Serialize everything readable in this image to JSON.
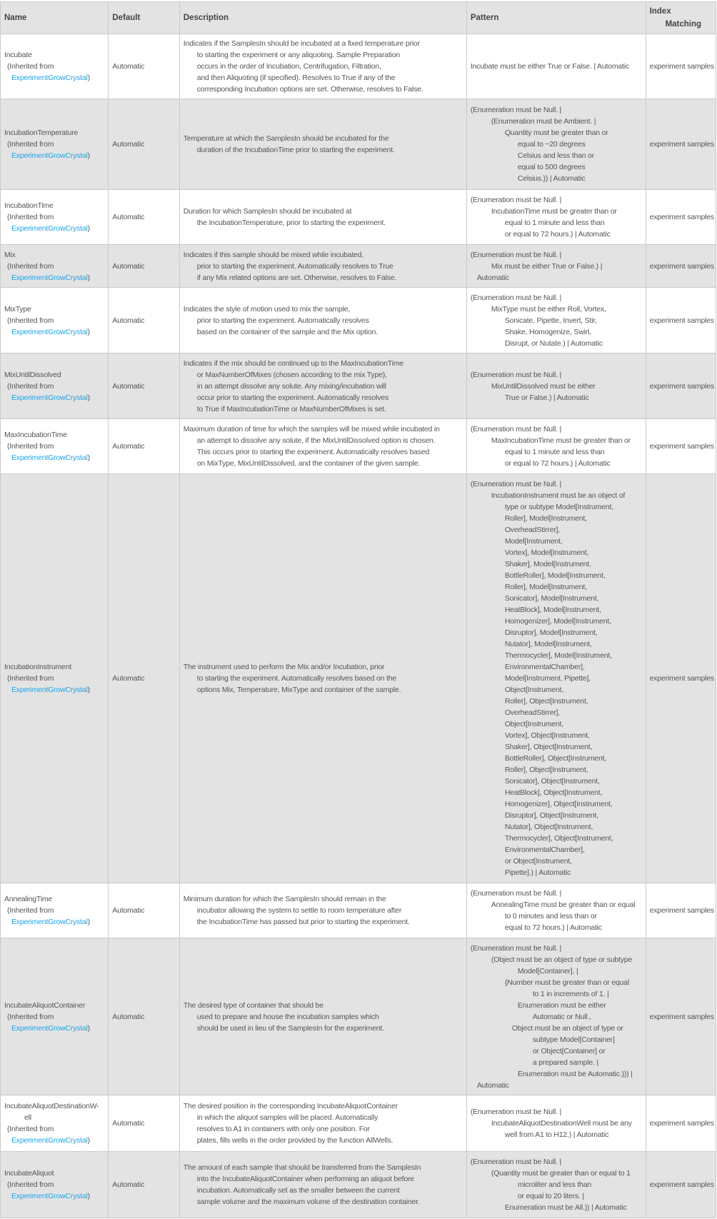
{
  "header": {
    "name": "Name",
    "default": "Default",
    "description": "Description",
    "pattern": "Pattern",
    "index_line1": "Index",
    "index_line2": "Matching"
  },
  "inherited": {
    "prefix": "(Inherited from",
    "link": "ExperimentGrowCrystal",
    "suffix": ")"
  },
  "colors": {
    "link": "#1fa3e8",
    "shade": "#e3e3e3",
    "border": "#c9c9c9"
  },
  "rows": [
    {
      "name_lines": [
        "Incubate"
      ],
      "default": "Automatic",
      "description": [
        "Indicates if the SamplesIn should be incubated at a fixed temperature prior",
        "to starting the experiment or any aliquoting. Sample Preparation",
        "occurs in the order of Incubation, Centrifugation, Filtration,",
        "and then Aliquoting (if specified).  Resolves to True if any of the",
        "corresponding Incubation options are set. Otherwise, resolves to False."
      ],
      "pattern": [
        {
          "level": 0,
          "text": "Incubate must be either True or False.  | Automatic"
        }
      ],
      "index_matching": "experiment samples"
    },
    {
      "name_lines": [
        "IncubationTemperature"
      ],
      "default": "Automatic",
      "description": [
        "Temperature at which the SamplesIn should be incubated for the",
        "duration of the IncubationTime prior to starting the experiment."
      ],
      "pattern": [
        {
          "level": 0,
          "text": "(Enumeration must be Null.  |"
        },
        {
          "level": 2,
          "text": "(Enumeration must be Ambient.  |"
        },
        {
          "level": 3,
          "text": "Quantity must be greater than or"
        },
        {
          "level": 5,
          "text": "equal to −20 degrees"
        },
        {
          "level": 5,
          "text": "Celsius and less than or"
        },
        {
          "level": 5,
          "text": "equal to 500 degrees"
        },
        {
          "level": 5,
          "text": "Celsius.)) | Automatic"
        }
      ],
      "index_matching": "experiment samples"
    },
    {
      "name_lines": [
        "IncubationTime"
      ],
      "default": "Automatic",
      "description": [
        "Duration for which SamplesIn should be incubated at",
        "the IncubationTemperature, prior to starting the experiment."
      ],
      "pattern": [
        {
          "level": 0,
          "text": "(Enumeration must be Null.  |"
        },
        {
          "level": 2,
          "text": "IncubationTime must be greater than or"
        },
        {
          "level": 3,
          "text": "equal to 1 minute and less than"
        },
        {
          "level": 3,
          "text": "or equal to 72 hours.) | Automatic"
        }
      ],
      "index_matching": "experiment samples"
    },
    {
      "name_lines": [
        "Mix"
      ],
      "default": "Automatic",
      "description": [
        "Indicates if this sample should be mixed while incubated,",
        "prior to starting the experiment.  Automatically resolves to True",
        "if any Mix related options are set. Otherwise, resolves to False."
      ],
      "pattern": [
        {
          "level": 0,
          "text": "(Enumeration must be Null.  |"
        },
        {
          "level": 2,
          "text": "Mix must be either True or False.)  |"
        },
        {
          "level": 1,
          "text": "Automatic"
        }
      ],
      "index_matching": "experiment samples"
    },
    {
      "name_lines": [
        "MixType"
      ],
      "default": "Automatic",
      "description": [
        "Indicates the style of motion used to mix the sample,",
        "prior to starting the experiment.  Automatically resolves",
        "based on the container of the sample and the Mix option."
      ],
      "pattern": [
        {
          "level": 0,
          "text": "(Enumeration must be Null.  |"
        },
        {
          "level": 2,
          "text": "MixType must be either Roll, Vortex,"
        },
        {
          "level": 3,
          "text": "Sonicate, Pipette, Invert, Stir,"
        },
        {
          "level": 3,
          "text": "Shake, Homogenize, Swirl,"
        },
        {
          "level": 3,
          "text": "Disrupt, or Nutate.) | Automatic"
        }
      ],
      "index_matching": "experiment samples"
    },
    {
      "name_lines": [
        "MixUntilDissolved"
      ],
      "default": "Automatic",
      "description": [
        "Indicates if the mix should be continued up to the MaxIncubationTime",
        "or MaxNumberOfMixes (chosen according to the mix Type),",
        "in an attempt dissolve any solute. Any mixing/incubation will",
        "occur prior to starting the experiment.  Automatically resolves",
        "to True if MaxIncubationTime or MaxNumberOfMixes is set."
      ],
      "pattern": [
        {
          "level": 0,
          "text": "(Enumeration must be Null.  |"
        },
        {
          "level": 2,
          "text": "MixUntilDissolved must be either"
        },
        {
          "level": 3,
          "text": "True or False.) | Automatic"
        }
      ],
      "index_matching": "experiment samples"
    },
    {
      "name_lines": [
        "MaxIncubationTime"
      ],
      "default": "Automatic",
      "description": [
        "Maximum duration of time for which the samples will be mixed while incubated in",
        "an attempt to dissolve any solute, if the MixUntilDissolved option is chosen.",
        "This occurs prior to starting the experiment.  Automatically resolves based",
        "on MixType, MixUntilDissolved, and the container of the given sample."
      ],
      "pattern": [
        {
          "level": 0,
          "text": "(Enumeration must be Null.  |"
        },
        {
          "level": 2,
          "text": "MaxIncubationTime must be greater than or"
        },
        {
          "level": 3,
          "text": "equal to 1 minute and less than"
        },
        {
          "level": 3,
          "text": "or equal to 72 hours.) | Automatic"
        }
      ],
      "index_matching": "experiment samples"
    },
    {
      "name_lines": [
        "IncubationInstrument"
      ],
      "default": "Automatic",
      "description": [
        "The instrument used to perform the Mix and/or Incubation, prior",
        "to starting the experiment.  Automatically resolves based on the",
        "options Mix, Temperature, MixType and container of the sample."
      ],
      "pattern": [
        {
          "level": 0,
          "text": "(Enumeration must be Null.  |"
        },
        {
          "level": 2,
          "text": "IncubationInstrument must be an object of"
        },
        {
          "level": 3,
          "text": "type or subtype Model[Instrument,"
        },
        {
          "level": 3,
          "text": "Roller], Model[Instrument,"
        },
        {
          "level": 3,
          "text": "OverheadStirrer],"
        },
        {
          "level": 3,
          "text": "Model[Instrument,"
        },
        {
          "level": 3,
          "text": "Vortex], Model[Instrument,"
        },
        {
          "level": 3,
          "text": "Shaker], Model[Instrument,"
        },
        {
          "level": 3,
          "text": "BottleRoller], Model[Instrument,"
        },
        {
          "level": 3,
          "text": "Roller], Model[Instrument,"
        },
        {
          "level": 3,
          "text": "Sonicator], Model[Instrument,"
        },
        {
          "level": 3,
          "text": "HeatBlock], Model[Instrument,"
        },
        {
          "level": 3,
          "text": "Homogenizer], Model[Instrument,"
        },
        {
          "level": 3,
          "text": "Disruptor], Model[Instrument,"
        },
        {
          "level": 3,
          "text": "Nutator], Model[Instrument,"
        },
        {
          "level": 3,
          "text": "Thermocycler], Model[Instrument,"
        },
        {
          "level": 3,
          "text": "EnvironmentalChamber],"
        },
        {
          "level": 3,
          "text": "Model[Instrument, Pipette],"
        },
        {
          "level": 3,
          "text": "Object[Instrument,"
        },
        {
          "level": 3,
          "text": "Roller], Object[Instrument,"
        },
        {
          "level": 3,
          "text": "OverheadStirrer],"
        },
        {
          "level": 3,
          "text": "Object[Instrument,"
        },
        {
          "level": 3,
          "text": "Vortex], Object[Instrument,"
        },
        {
          "level": 3,
          "text": "Shaker], Object[Instrument,"
        },
        {
          "level": 3,
          "text": "BottleRoller], Object[Instrument,"
        },
        {
          "level": 3,
          "text": "Roller], Object[Instrument,"
        },
        {
          "level": 3,
          "text": "Sonicator], Object[Instrument,"
        },
        {
          "level": 3,
          "text": "HeatBlock], Object[Instrument,"
        },
        {
          "level": 3,
          "text": "Homogenizer], Object[Instrument,"
        },
        {
          "level": 3,
          "text": "Disruptor], Object[Instrument,"
        },
        {
          "level": 3,
          "text": "Nutator], Object[Instrument,"
        },
        {
          "level": 3,
          "text": "Thermocycler], Object[Instrument,"
        },
        {
          "level": 3,
          "text": "EnvironmentalChamber],"
        },
        {
          "level": 3,
          "text": "or Object[Instrument,"
        },
        {
          "level": 3,
          "text": "Pipette].) | Automatic"
        }
      ],
      "index_matching": "experiment samples"
    },
    {
      "name_lines": [
        "AnnealingTime"
      ],
      "default": "Automatic",
      "description": [
        "Minimum duration for which the SamplesIn should remain in the",
        "incubator allowing the system to settle to room temperature after",
        "the IncubationTime has passed but prior to starting the experiment."
      ],
      "pattern": [
        {
          "level": 0,
          "text": "(Enumeration must be Null.  |"
        },
        {
          "level": 2,
          "text": "AnnealingTime must be greater than or equal"
        },
        {
          "level": 3,
          "text": "to 0 minutes and less than or"
        },
        {
          "level": 3,
          "text": "equal to 72 hours.) | Automatic"
        }
      ],
      "index_matching": "experiment samples"
    },
    {
      "name_lines": [
        "IncubateAliquotContainer"
      ],
      "default": "Automatic",
      "description": [
        "The desired type of container that should be",
        "used to prepare and house the incubation samples which",
        "should be used in lieu of the SamplesIn for the experiment."
      ],
      "pattern": [
        {
          "level": 0,
          "text": "(Enumeration must be Null.  |"
        },
        {
          "level": 2,
          "text": "(Object must be an object of type or subtype"
        },
        {
          "level": 5,
          "text": "Model[Container].  |"
        },
        {
          "level": 3,
          "text": "{Number must be greater than or equal"
        },
        {
          "level": 6,
          "text": "to 1 in increments of 1.  |"
        },
        {
          "level": 5,
          "text": "Enumeration must be either"
        },
        {
          "level": 6,
          "text": "Automatic or Null.,"
        },
        {
          "level": 4,
          "text": "Object must be an object of type or"
        },
        {
          "level": 6,
          "text": "subtype Model[Container]"
        },
        {
          "level": 6,
          "text": "or Object[Container] or"
        },
        {
          "level": 6,
          "text": "a prepared sample.  |"
        },
        {
          "level": 5,
          "text": "Enumeration must be Automatic.}))  |"
        },
        {
          "level": 1,
          "text": "Automatic"
        }
      ],
      "index_matching": "experiment samples"
    },
    {
      "name_lines": [
        "IncubateAliquotDestinationW-",
        "ell"
      ],
      "default": "Automatic",
      "description": [
        "The desired position in the corresponding IncubateAliquotContainer",
        "in which the aliquot samples will be placed.  Automatically",
        "resolves to A1 in containers with only one position.  For",
        "plates, fills wells in the order provided by the function AllWells."
      ],
      "pattern": [
        {
          "level": 0,
          "text": "(Enumeration must be Null.  |"
        },
        {
          "level": 2,
          "text": "IncubateAliquotDestinationWell must be any"
        },
        {
          "level": 3,
          "text": "well from A1 to H12.) | Automatic"
        }
      ],
      "index_matching": "experiment samples"
    },
    {
      "name_lines": [
        "IncubateAliquot"
      ],
      "default": "Automatic",
      "description": [
        "The amount of each sample that should be transferred from the SamplesIn",
        "into the IncubateAliquotContainer when performing an aliquot before",
        "incubation.  Automatically set as the smaller between the current",
        "sample volume and the maximum volume of the destination container."
      ],
      "pattern": [
        {
          "level": 0,
          "text": "(Enumeration must be Null.  |"
        },
        {
          "level": 2,
          "text": "(Quantity must be greater than or equal to 1"
        },
        {
          "level": 5,
          "text": "microliter and less than"
        },
        {
          "level": 5,
          "text": "or equal to 20 liters.  |"
        },
        {
          "level": 3,
          "text": "Enumeration must be All.)) | Automatic"
        }
      ],
      "index_matching": "experiment samples"
    }
  ]
}
